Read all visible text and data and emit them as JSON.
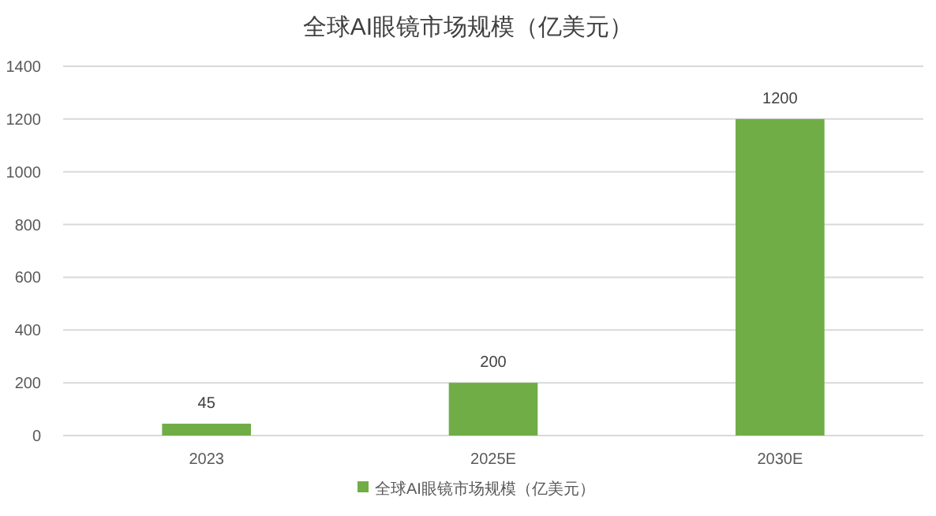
{
  "chart_data": {
    "type": "bar",
    "title": "全球AI眼镜市场规模（亿美元）",
    "categories": [
      "2023",
      "2025E",
      "2030E"
    ],
    "series": [
      {
        "name": "全球AI眼镜市场规模（亿美元）",
        "color": "#70ad47",
        "values": [
          45,
          200,
          1200
        ]
      }
    ],
    "ylim": [
      0,
      1400
    ],
    "yticks": [
      0,
      200,
      400,
      600,
      800,
      1000,
      1200,
      1400
    ],
    "grid": "y",
    "data_labels": true,
    "legend": "bottom"
  }
}
